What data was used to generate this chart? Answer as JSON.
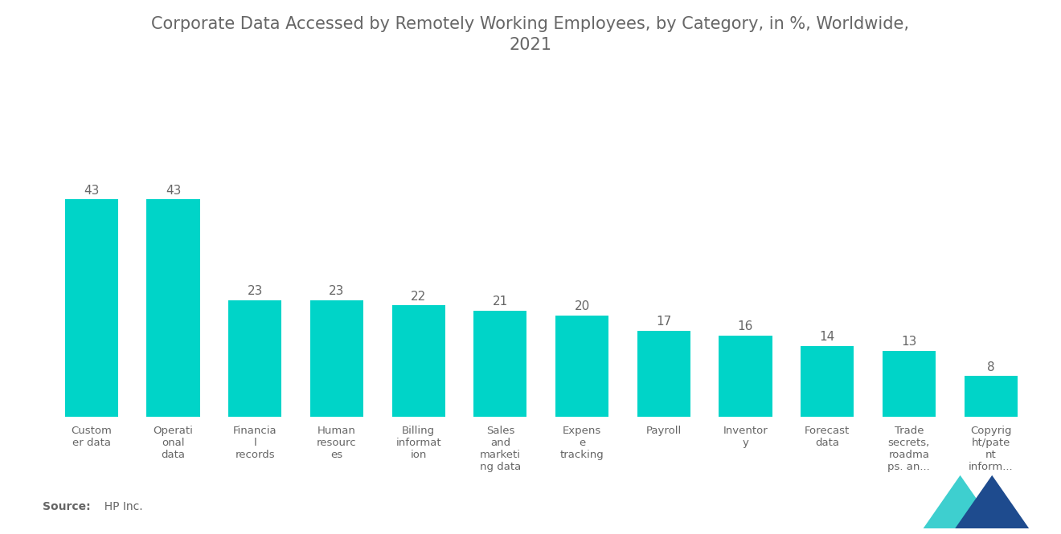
{
  "title": "Corporate Data Accessed by Remotely Working Employees, by Category, in %, Worldwide,\n2021",
  "categories": [
    "Custom\ner data",
    "Operati\nonal\ndata",
    "Financia\nl\nrecords",
    "Human\nresourc\nes",
    "Billing\ninformat\nion",
    "Sales\nand\nmarketi\nng data",
    "Expens\ne\ntracking",
    "Payroll",
    "Inventor\ny",
    "Forecast\ndata",
    "Trade\nsecrets,\nroadma\nps. an...",
    "Copyrig\nht/pate\nnt\ninform..."
  ],
  "values": [
    43,
    43,
    23,
    23,
    22,
    21,
    20,
    17,
    16,
    14,
    13,
    8
  ],
  "bar_color": "#00D4C8",
  "value_color": "#666666",
  "title_color": "#666666",
  "label_color": "#666666",
  "source_bold": "Source:",
  "source_normal": "  HP Inc.",
  "background_color": "#ffffff",
  "ylim": [
    0,
    55
  ],
  "title_fontsize": 15,
  "label_fontsize": 9.5,
  "value_fontsize": 11,
  "logo_teal": "#3ECFCF",
  "logo_navy": "#1E4B8E"
}
